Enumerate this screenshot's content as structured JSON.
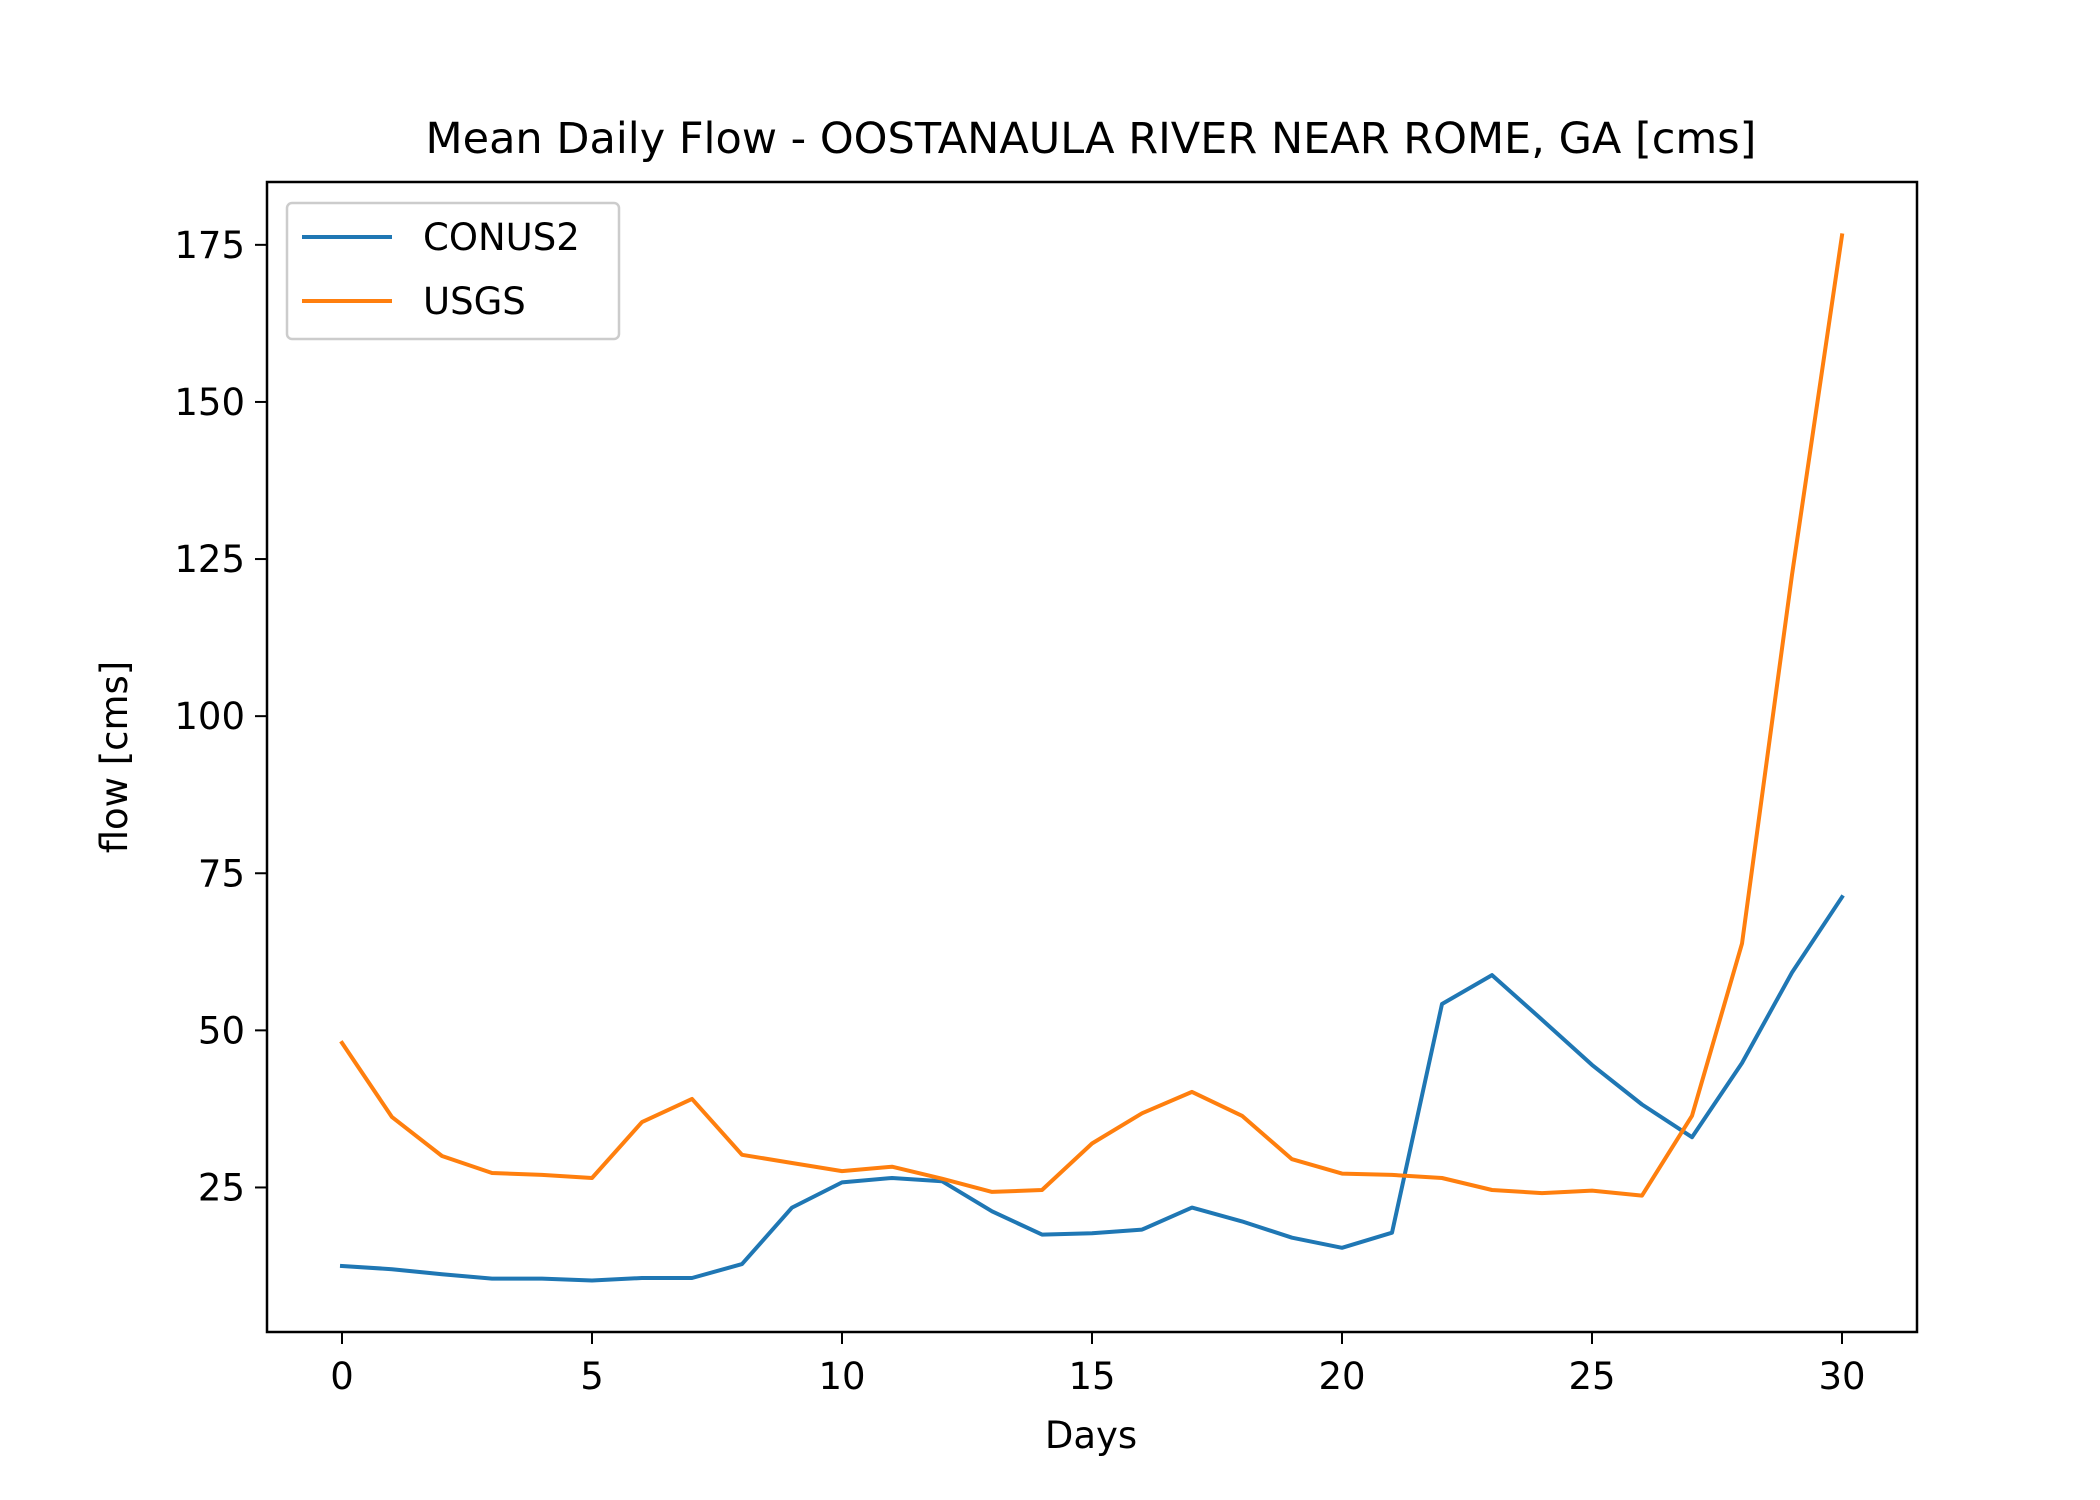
{
  "chart_data": {
    "type": "line",
    "title": "Mean Daily Flow - OOSTANAULA RIVER NEAR ROME, GA [cms]",
    "xlabel": "Days",
    "ylabel": "flow [cms]",
    "xlim": [
      -1.5,
      31.5
    ],
    "ylim": [
      2,
      185
    ],
    "xticks": [
      0,
      5,
      10,
      15,
      20,
      25,
      30
    ],
    "yticks": [
      25,
      50,
      75,
      100,
      125,
      150,
      175
    ],
    "grid": false,
    "legend": "top-left",
    "x": [
      0,
      1,
      2,
      3,
      4,
      5,
      6,
      7,
      8,
      9,
      10,
      11,
      12,
      13,
      14,
      15,
      16,
      17,
      18,
      19,
      20,
      21,
      22,
      23,
      24,
      25,
      26,
      27,
      28,
      29,
      30
    ],
    "series": [
      {
        "name": "CONUS2",
        "color": "#1f77b4",
        "values": [
          12.5,
          12,
          11.2,
          10.5,
          10.5,
          10.2,
          10.6,
          10.6,
          12.8,
          21.8,
          25.8,
          26.5,
          26.0,
          21.2,
          17.5,
          17.7,
          18.3,
          21.8,
          19.6,
          17.0,
          15.4,
          17.8,
          54.2,
          58.8,
          51.7,
          44.5,
          38.2,
          33.0,
          44.8,
          59.2,
          71.2
        ]
      },
      {
        "name": "USGS",
        "color": "#ff7f0e",
        "values": [
          48.0,
          36.2,
          30.0,
          27.3,
          27.0,
          26.5,
          35.4,
          39.1,
          30.2,
          28.9,
          27.6,
          28.3,
          26.4,
          24.3,
          24.6,
          32.0,
          36.8,
          40.2,
          36.4,
          29.5,
          27.2,
          27.0,
          26.5,
          24.6,
          24.1,
          24.5,
          23.7,
          36.4,
          63.8,
          122.5,
          176.5
        ]
      }
    ]
  }
}
